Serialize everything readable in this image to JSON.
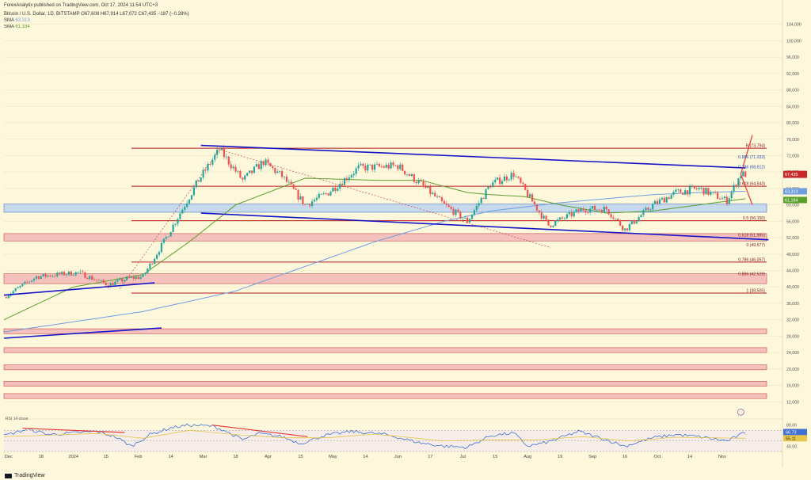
{
  "header": {
    "published": "ForexAnalytix published on TradingView.com, Oct 17, 2024 11:54 UTC+3",
    "symbol": "Bitcoin / U.S. Dollar, 1D, BITSTAMP",
    "ohlc": "O67,608 H67,914 L67,072 C67,435 −187 (−0.28%)",
    "sma1_label": "SMA",
    "sma1_value": "63,313",
    "sma2_label": "SMA",
    "sma2_value": "61,184"
  },
  "footer": {
    "brand": "TradingView"
  },
  "colors": {
    "background": "#fdf7dc",
    "candle_up": "#26a69a",
    "candle_down": "#ef5350",
    "channel": "#1414c8",
    "hline": "#b71c1c",
    "zone_red": "#f3b7b7",
    "zone_blue": "#bcd3f0",
    "sma_fast": "#5aa02c",
    "sma_slow": "#6f9ee0",
    "rsi": "#3d6fd4",
    "rsi_ma": "#e6c84a",
    "price_tag": "#c62828"
  },
  "chart_data": [
    {
      "type": "candlestick",
      "title": "Bitcoin / U.S. Dollar, 1D, BITSTAMP",
      "x_ticks": [
        "Dec",
        "18",
        "2024",
        "15",
        "Feb",
        "14",
        "Mar",
        "18",
        "Apr",
        "15",
        "May",
        "14",
        "Jun",
        "17",
        "Jul",
        "15",
        "Aug",
        "19",
        "Sep",
        "16",
        "Oct",
        "14",
        "Nov"
      ],
      "y_ticks": [
        "104,000",
        "100,000",
        "96,000",
        "92,000",
        "88,000",
        "84,000",
        "80,000",
        "76,000",
        "72,000",
        "68,000",
        "64,000",
        "60,000",
        "56,000",
        "52,000",
        "48,000",
        "44,000",
        "40,000",
        "36,000",
        "32,000",
        "28,000",
        "24,000",
        "20,000",
        "16,000",
        "12,000"
      ],
      "y_tick_values": [
        104000,
        100000,
        96000,
        92000,
        88000,
        84000,
        80000,
        76000,
        72000,
        68000,
        64000,
        60000,
        56000,
        52000,
        48000,
        44000,
        40000,
        36000,
        32000,
        28000,
        24000,
        20000,
        16000,
        12000
      ],
      "ylim": [
        8000,
        108000
      ],
      "x_range_days": [
        0,
        336
      ],
      "price_anchors": [
        [
          0,
          37500
        ],
        [
          14,
          42500
        ],
        [
          32,
          43500
        ],
        [
          45,
          40500
        ],
        [
          53,
          42000
        ],
        [
          60,
          42500
        ],
        [
          70,
          52000
        ],
        [
          84,
          66000
        ],
        [
          93,
          73500
        ],
        [
          103,
          66000
        ],
        [
          112,
          70500
        ],
        [
          120,
          67000
        ],
        [
          130,
          60000
        ],
        [
          140,
          63000
        ],
        [
          153,
          69000
        ],
        [
          170,
          69500
        ],
        [
          180,
          65000
        ],
        [
          190,
          60000
        ],
        [
          200,
          56000
        ],
        [
          210,
          65000
        ],
        [
          220,
          67500
        ],
        [
          235,
          55000
        ],
        [
          250,
          59000
        ],
        [
          260,
          59000
        ],
        [
          268,
          54000
        ],
        [
          280,
          60000
        ],
        [
          290,
          63000
        ],
        [
          300,
          64000
        ],
        [
          312,
          61000
        ],
        [
          318,
          67500
        ],
        [
          320,
          67435
        ]
      ],
      "sma_fast_anchors": [
        [
          0,
          32000
        ],
        [
          30,
          40000
        ],
        [
          60,
          43000
        ],
        [
          80,
          51000
        ],
        [
          100,
          60000
        ],
        [
          130,
          66500
        ],
        [
          160,
          66000
        ],
        [
          180,
          66000
        ],
        [
          200,
          63000
        ],
        [
          210,
          62500
        ],
        [
          225,
          62000
        ],
        [
          240,
          60000
        ],
        [
          260,
          58000
        ],
        [
          280,
          58500
        ],
        [
          300,
          60000
        ],
        [
          320,
          61500
        ]
      ],
      "sma_slow_anchors": [
        [
          0,
          29000
        ],
        [
          60,
          34000
        ],
        [
          100,
          39000
        ],
        [
          130,
          45000
        ],
        [
          160,
          51000
        ],
        [
          190,
          56000
        ],
        [
          210,
          58500
        ],
        [
          240,
          60500
        ],
        [
          260,
          61500
        ],
        [
          280,
          62500
        ],
        [
          300,
          63000
        ],
        [
          320,
          63313
        ]
      ],
      "last_price": {
        "label": "67,435",
        "countdown": "11:05:34"
      },
      "sma_tags": [
        {
          "label": "63,313"
        },
        {
          "label": "61,184"
        }
      ],
      "fib_levels": [
        {
          "label": "0 (49,577)",
          "value": 49577
        },
        {
          "label": "0.5 (56,150)",
          "value": 56150
        },
        {
          "label": "0.618 (51,985)",
          "value": 51985
        },
        {
          "label": "0.618 (64,543)",
          "value": 64543
        },
        {
          "label": "0.786 (46,057)",
          "value": 46057
        },
        {
          "label": "0.786 (68,612)",
          "value": 68612
        },
        {
          "label": "0.886 (42,528)",
          "value": 42528
        },
        {
          "label": "0.886 (71,033)",
          "value": 71033
        },
        {
          "label": "1 (38,505)",
          "value": 38505
        },
        {
          "label": "B (73,794)",
          "value": 73794
        }
      ],
      "red_lines": [
        {
          "start_day": 55,
          "price": 73794
        },
        {
          "start_day": 55,
          "price": 64543
        },
        {
          "start_day": 55,
          "price": 56150
        },
        {
          "start_day": 55,
          "price": 46057
        },
        {
          "start_day": 55,
          "price": 38505
        }
      ],
      "zones": [
        {
          "kind": "blue",
          "top": 60200,
          "bottom": 58200,
          "start_day": 0
        },
        {
          "kind": "red",
          "top": 53000,
          "bottom": 51200,
          "start_day": 0
        },
        {
          "kind": "red",
          "top": 43200,
          "bottom": 40800,
          "start_day": 0
        },
        {
          "kind": "red",
          "top": 29800,
          "bottom": 28600,
          "start_day": 0
        },
        {
          "kind": "red",
          "top": 25200,
          "bottom": 24000,
          "start_day": 0
        },
        {
          "kind": "red",
          "top": 21000,
          "bottom": 19800,
          "start_day": 0
        },
        {
          "kind": "red",
          "top": 17000,
          "bottom": 15800,
          "start_day": 0
        },
        {
          "kind": "red",
          "top": 14000,
          "bottom": 12800,
          "start_day": 0
        }
      ],
      "trend_lines": [
        {
          "kind": "channel",
          "from": [
            85,
            74500
          ],
          "to": [
            320,
            69000
          ]
        },
        {
          "kind": "channel",
          "from": [
            85,
            58000
          ],
          "to": [
            330,
            51500
          ]
        },
        {
          "kind": "channel",
          "from": [
            0,
            38000
          ],
          "to": [
            65,
            41000
          ]
        },
        {
          "kind": "channel",
          "from": [
            0,
            27500
          ],
          "to": [
            68,
            30000
          ]
        },
        {
          "kind": "pointer",
          "from": [
            318,
            67500
          ],
          "to": [
            323,
            77000
          ]
        },
        {
          "kind": "pointer",
          "from": [
            318,
            67500
          ],
          "to": [
            323,
            60000
          ]
        }
      ],
      "event_marker": {
        "day": 318,
        "price": 9500
      }
    },
    {
      "type": "line",
      "title": "RSI",
      "legend": "RSI 14 close",
      "y_ticks": [
        "80.00",
        "60.00",
        "40.00"
      ],
      "y_tick_values": [
        80,
        60,
        40
      ],
      "bands": [
        70,
        50,
        30
      ],
      "ylim": [
        30,
        90
      ],
      "current": "66.73",
      "signal_current": "55.11",
      "series_anchors": [
        [
          0,
          60
        ],
        [
          10,
          72
        ],
        [
          20,
          62
        ],
        [
          40,
          68
        ],
        [
          48,
          58
        ],
        [
          55,
          40
        ],
        [
          63,
          62
        ],
        [
          72,
          75
        ],
        [
          80,
          80
        ],
        [
          90,
          78
        ],
        [
          95,
          70
        ],
        [
          103,
          52
        ],
        [
          110,
          64
        ],
        [
          120,
          58
        ],
        [
          128,
          45
        ],
        [
          138,
          60
        ],
        [
          150,
          68
        ],
        [
          165,
          62
        ],
        [
          180,
          46
        ],
        [
          190,
          40
        ],
        [
          200,
          38
        ],
        [
          210,
          60
        ],
        [
          220,
          65
        ],
        [
          226,
          40
        ],
        [
          235,
          48
        ],
        [
          248,
          68
        ],
        [
          260,
          52
        ],
        [
          268,
          40
        ],
        [
          280,
          56
        ],
        [
          290,
          62
        ],
        [
          300,
          58
        ],
        [
          312,
          50
        ],
        [
          320,
          66
        ]
      ],
      "signal_anchors": [
        [
          0,
          58
        ],
        [
          40,
          64
        ],
        [
          60,
          55
        ],
        [
          80,
          70
        ],
        [
          100,
          62
        ],
        [
          120,
          56
        ],
        [
          140,
          56
        ],
        [
          160,
          63
        ],
        [
          190,
          50
        ],
        [
          210,
          52
        ],
        [
          230,
          52
        ],
        [
          250,
          58
        ],
        [
          270,
          50
        ],
        [
          290,
          57
        ],
        [
          320,
          55
        ]
      ],
      "divergences": [
        {
          "from": [
            8,
            74
          ],
          "to": [
            52,
            66
          ]
        },
        {
          "from": [
            90,
            80
          ],
          "to": [
            131,
            58
          ]
        }
      ]
    }
  ]
}
